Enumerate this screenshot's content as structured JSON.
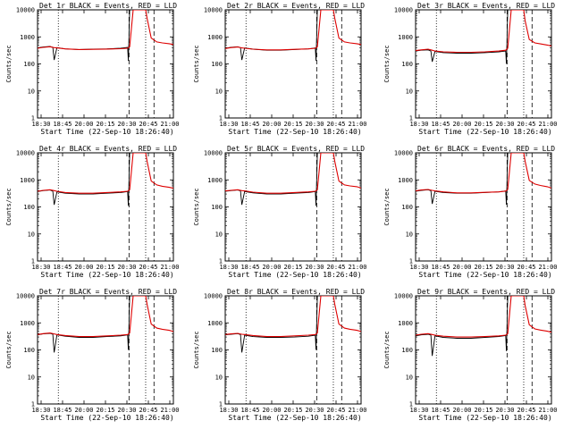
{
  "chart_data": {
    "type": "line",
    "layout": "grid 3x3",
    "ylabel": "Counts/sec",
    "xlabel": "Start Time (22-Sep-10 18:26:40)",
    "x_ticks": [
      "18:30",
      "18:45",
      "20:00",
      "20:15",
      "20:30",
      "20:45",
      "21:00"
    ],
    "y_scale": "log",
    "ylim": [
      1,
      10000
    ],
    "y_ticks": [
      "1",
      "10",
      "100",
      "1000",
      "10000"
    ],
    "x_range_minutes": [
      0,
      98
    ],
    "dashed_markers_minutes": [
      66,
      84
    ],
    "dotted_markers_minutes": [
      15,
      78
    ],
    "series_names": [
      "Events",
      "LLD"
    ],
    "series_colors": {
      "Events": "#000000",
      "LLD": "#dd0000"
    },
    "panels": [
      {
        "title": "Det 1r BLACK = Events, RED = LLD",
        "series": [
          {
            "name": "Events",
            "x": [
              0,
              4,
              9,
              11,
              12,
              14,
              20,
              30,
              40,
              50,
              60,
              65,
              65.5,
              66.5,
              69,
              71,
              72,
              76,
              78
            ],
            "y": [
              390,
              420,
              440,
              410,
              140,
              400,
              360,
              340,
              350,
              360,
              380,
              410,
              130,
              10000,
              10000,
              10000,
              10000,
              10000,
              10000
            ]
          },
          {
            "name": "LLD",
            "x": [
              0,
              4,
              9,
              12,
              14,
              20,
              30,
              40,
              50,
              60,
              65,
              66.5,
              69,
              71,
              76,
              77,
              78,
              79,
              82,
              86,
              90,
              95,
              98
            ],
            "y": [
              380,
              410,
              430,
              400,
              390,
              360,
              340,
              345,
              355,
              365,
              380,
              430,
              10000,
              10000,
              10000,
              10000,
              10000,
              5000,
              900,
              650,
              600,
              560,
              520
            ]
          }
        ]
      },
      {
        "title": "Det 2r BLACK = Events, RED = LLD",
        "series": [
          {
            "name": "Events",
            "x": [
              0,
              4,
              9,
              11,
              12,
              14,
              20,
              30,
              40,
              50,
              60,
              65,
              65.5,
              66.5,
              69,
              71,
              72,
              76,
              78
            ],
            "y": [
              380,
              410,
              430,
              400,
              140,
              390,
              350,
              320,
              320,
              340,
              360,
              390,
              130,
              10000,
              10000,
              10000,
              10000,
              10000,
              10000
            ]
          },
          {
            "name": "LLD",
            "x": [
              0,
              4,
              9,
              12,
              14,
              20,
              30,
              40,
              50,
              60,
              65,
              66.5,
              69,
              71,
              76,
              77,
              78,
              79,
              82,
              86,
              90,
              95,
              98
            ],
            "y": [
              370,
              400,
              420,
              390,
              380,
              350,
              330,
              330,
              345,
              360,
              380,
              430,
              10000,
              10000,
              10000,
              10000,
              10000,
              5000,
              900,
              650,
              600,
              560,
              520
            ]
          }
        ]
      },
      {
        "title": "Det 3r BLACK = Events, RED = LLD",
        "series": [
          {
            "name": "Events",
            "x": [
              0,
              4,
              9,
              11,
              12,
              14,
              20,
              30,
              40,
              50,
              60,
              65,
              65.5,
              66.5,
              69,
              71,
              72,
              76,
              78
            ],
            "y": [
              300,
              320,
              330,
              300,
              120,
              290,
              260,
              250,
              250,
              260,
              280,
              300,
              100,
              10000,
              10000,
              10000,
              10000,
              10000,
              10000
            ]
          },
          {
            "name": "LLD",
            "x": [
              0,
              4,
              9,
              12,
              14,
              20,
              30,
              40,
              50,
              60,
              65,
              66.5,
              69,
              71,
              76,
              77,
              78,
              79,
              82,
              86,
              90,
              95,
              98
            ],
            "y": [
              310,
              330,
              350,
              320,
              300,
              280,
              270,
              270,
              280,
              300,
              320,
              380,
              10000,
              10000,
              10000,
              10000,
              10000,
              4000,
              800,
              600,
              550,
              500,
              460
            ]
          }
        ]
      },
      {
        "title": "Det 4r BLACK = Events, RED = LLD",
        "series": [
          {
            "name": "Events",
            "x": [
              0,
              4,
              9,
              11,
              12,
              14,
              20,
              30,
              40,
              50,
              60,
              65,
              65.5,
              66.5,
              69,
              71,
              72,
              76,
              78
            ],
            "y": [
              370,
              400,
              420,
              380,
              120,
              360,
              320,
              300,
              300,
              320,
              340,
              370,
              110,
              10000,
              10000,
              10000,
              10000,
              10000,
              10000
            ]
          },
          {
            "name": "LLD",
            "x": [
              0,
              4,
              9,
              12,
              14,
              20,
              30,
              40,
              50,
              60,
              65,
              66.5,
              69,
              71,
              76,
              77,
              78,
              79,
              82,
              86,
              90,
              95,
              98
            ],
            "y": [
              380,
              410,
              430,
              400,
              380,
              340,
              320,
              320,
              340,
              360,
              380,
              430,
              10000,
              10000,
              10000,
              10000,
              10000,
              5000,
              900,
              650,
              580,
              530,
              490
            ]
          }
        ]
      },
      {
        "title": "Det 5r BLACK = Events, RED = LLD",
        "series": [
          {
            "name": "Events",
            "x": [
              0,
              4,
              9,
              11,
              12,
              14,
              20,
              30,
              40,
              50,
              60,
              65,
              65.5,
              66.5,
              69,
              71,
              72,
              76,
              78
            ],
            "y": [
              380,
              400,
              420,
              390,
              120,
              370,
              330,
              300,
              300,
              320,
              340,
              370,
              110,
              10000,
              10000,
              10000,
              10000,
              10000,
              10000
            ]
          },
          {
            "name": "LLD",
            "x": [
              0,
              4,
              9,
              12,
              14,
              20,
              30,
              40,
              50,
              60,
              65,
              66.5,
              69,
              71,
              76,
              77,
              78,
              79,
              82,
              86,
              90,
              95,
              98
            ],
            "y": [
              390,
              410,
              430,
              400,
              390,
              350,
              320,
              320,
              340,
              360,
              380,
              430,
              10000,
              10000,
              10000,
              10000,
              10000,
              5000,
              900,
              650,
              600,
              560,
              500
            ]
          }
        ]
      },
      {
        "title": "Det 6r BLACK = Events, RED = LLD",
        "series": [
          {
            "name": "Events",
            "x": [
              0,
              4,
              9,
              11,
              12,
              14,
              20,
              30,
              40,
              50,
              60,
              65,
              65.5,
              66.5,
              69,
              71,
              72,
              76,
              78
            ],
            "y": [
              380,
              410,
              430,
              400,
              130,
              380,
              340,
              320,
              320,
              340,
              360,
              390,
              120,
              10000,
              10000,
              10000,
              10000,
              10000,
              10000
            ]
          },
          {
            "name": "LLD",
            "x": [
              0,
              4,
              9,
              12,
              14,
              20,
              30,
              40,
              50,
              60,
              65,
              66.5,
              69,
              71,
              76,
              77,
              78,
              79,
              82,
              86,
              90,
              95,
              98
            ],
            "y": [
              390,
              420,
              440,
              410,
              390,
              360,
              330,
              330,
              345,
              360,
              385,
              440,
              10000,
              10000,
              10000,
              10000,
              10000,
              5000,
              950,
              700,
              620,
              560,
              500
            ]
          }
        ]
      },
      {
        "title": "Det 7r BLACK = Events, RED = LLD",
        "series": [
          {
            "name": "Events",
            "x": [
              0,
              4,
              9,
              11,
              12,
              14,
              20,
              30,
              40,
              50,
              60,
              65,
              65.5,
              66.5,
              69,
              71,
              72,
              76,
              78
            ],
            "y": [
              360,
              390,
              410,
              380,
              80,
              360,
              320,
              290,
              290,
              310,
              330,
              360,
              100,
              10000,
              10000,
              10000,
              10000,
              10000,
              10000
            ]
          },
          {
            "name": "LLD",
            "x": [
              0,
              4,
              9,
              12,
              14,
              20,
              30,
              40,
              50,
              60,
              65,
              66.5,
              69,
              71,
              76,
              77,
              78,
              79,
              82,
              86,
              90,
              95,
              98
            ],
            "y": [
              370,
              400,
              420,
              390,
              370,
              340,
              310,
              310,
              330,
              350,
              370,
              420,
              10000,
              10000,
              10000,
              10000,
              10000,
              5000,
              900,
              640,
              580,
              530,
              480
            ]
          }
        ]
      },
      {
        "title": "Det 8r BLACK = Events, RED = LLD",
        "series": [
          {
            "name": "Events",
            "x": [
              0,
              4,
              9,
              11,
              12,
              14,
              20,
              30,
              40,
              50,
              60,
              65,
              65.5,
              66.5,
              69,
              71,
              72,
              76,
              78
            ],
            "y": [
              360,
              380,
              400,
              370,
              80,
              350,
              310,
              290,
              290,
              300,
              320,
              350,
              100,
              10000,
              10000,
              10000,
              10000,
              10000,
              10000
            ]
          },
          {
            "name": "LLD",
            "x": [
              0,
              4,
              9,
              12,
              14,
              20,
              30,
              40,
              50,
              60,
              65,
              66.5,
              69,
              71,
              76,
              77,
              78,
              79,
              82,
              86,
              90,
              95,
              98
            ],
            "y": [
              370,
              390,
              410,
              380,
              370,
              340,
              310,
              310,
              330,
              350,
              370,
              420,
              10000,
              10000,
              10000,
              10000,
              10000,
              5000,
              900,
              640,
              580,
              530,
              480
            ]
          }
        ]
      },
      {
        "title": "Det 9r BLACK = Events, RED = LLD",
        "series": [
          {
            "name": "Events",
            "x": [
              0,
              4,
              9,
              11,
              12,
              14,
              20,
              30,
              40,
              50,
              60,
              65,
              65.5,
              66.5,
              69,
              71,
              72,
              76,
              78
            ],
            "y": [
              330,
              360,
              380,
              350,
              60,
              330,
              290,
              270,
              270,
              290,
              310,
              340,
              90,
              10000,
              10000,
              10000,
              10000,
              10000,
              10000
            ]
          },
          {
            "name": "LLD",
            "x": [
              0,
              4,
              9,
              12,
              14,
              20,
              30,
              40,
              50,
              60,
              65,
              66.5,
              69,
              71,
              76,
              77,
              78,
              79,
              82,
              86,
              90,
              95,
              98
            ],
            "y": [
              350,
              380,
              400,
              370,
              350,
              320,
              300,
              300,
              310,
              330,
              350,
              400,
              10000,
              10000,
              10000,
              10000,
              10000,
              4500,
              850,
              600,
              540,
              490,
              450
            ]
          }
        ]
      }
    ]
  }
}
